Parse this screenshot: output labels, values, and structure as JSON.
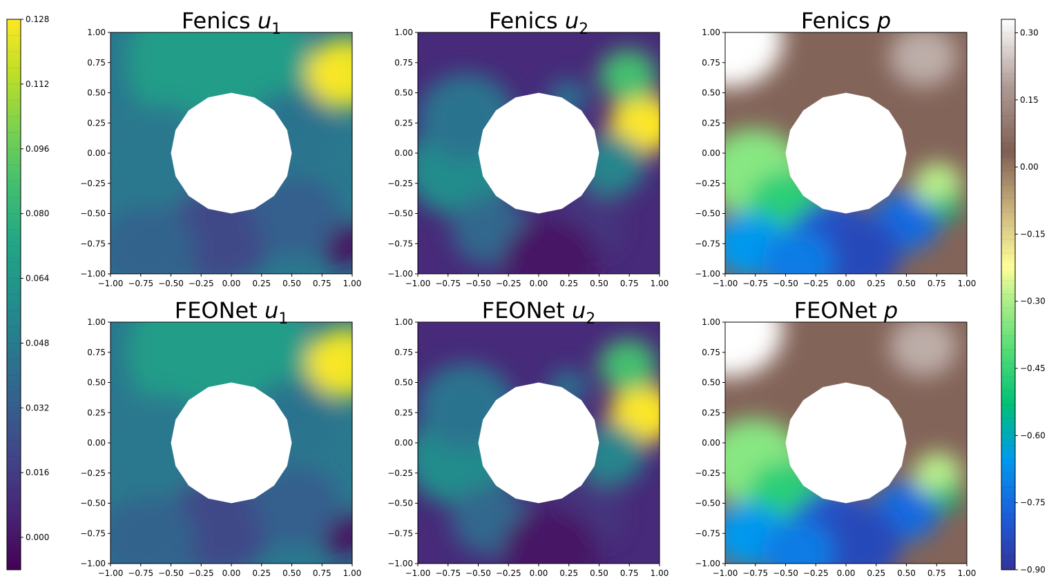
{
  "chart_data": [
    {
      "type": "heatmap",
      "title": "Fenics",
      "title_var": "u",
      "title_sub": "1",
      "field": "u1",
      "colormap": "viridis",
      "xlim": [
        -1.0,
        1.0
      ],
      "ylim": [
        -1.0,
        1.0
      ],
      "x_ticks": [
        "−1.00",
        "−0.75",
        "−0.50",
        "−0.25",
        "0.00",
        "0.25",
        "0.50",
        "0.75",
        "1.00"
      ],
      "y_ticks": [
        "−1.00",
        "−0.75",
        "−0.50",
        "−0.25",
        "0.00",
        "0.25",
        "0.50",
        "0.75",
        "1.00"
      ],
      "obstacle": {
        "shape": "circle",
        "center": [
          0.0,
          0.0
        ],
        "radius": 0.5
      }
    },
    {
      "type": "heatmap",
      "title": "Fenics",
      "title_var": "u",
      "title_sub": "2",
      "field": "u2",
      "colormap": "viridis",
      "xlim": [
        -1.0,
        1.0
      ],
      "ylim": [
        -1.0,
        1.0
      ],
      "x_ticks": [
        "−1.00",
        "−0.75",
        "−0.50",
        "−0.25",
        "0.00",
        "0.25",
        "0.50",
        "0.75",
        "1.00"
      ],
      "y_ticks": [
        "−1.00",
        "−0.75",
        "−0.50",
        "−0.25",
        "0.00",
        "0.25",
        "0.50",
        "0.75",
        "1.00"
      ],
      "obstacle": {
        "shape": "circle",
        "center": [
          0.0,
          0.0
        ],
        "radius": 0.5
      }
    },
    {
      "type": "heatmap",
      "title": "Fenics",
      "title_var": "p",
      "title_sub": "",
      "field": "p",
      "colormap": "terrain",
      "xlim": [
        -1.0,
        1.0
      ],
      "ylim": [
        -1.0,
        1.0
      ],
      "x_ticks": [
        "−1.00",
        "−0.75",
        "−0.50",
        "−0.25",
        "0.00",
        "0.25",
        "0.50",
        "0.75",
        "1.00"
      ],
      "y_ticks": [
        "−1.00",
        "−0.75",
        "−0.50",
        "−0.25",
        "0.00",
        "0.25",
        "0.50",
        "0.75",
        "1.00"
      ],
      "obstacle": {
        "shape": "circle",
        "center": [
          0.0,
          0.0
        ],
        "radius": 0.5
      }
    },
    {
      "type": "heatmap",
      "title": "FEONet",
      "title_var": "u",
      "title_sub": "1",
      "field": "u1",
      "colormap": "viridis",
      "xlim": [
        -1.0,
        1.0
      ],
      "ylim": [
        -1.0,
        1.0
      ],
      "x_ticks": [
        "−1.00",
        "−0.75",
        "−0.50",
        "−0.25",
        "0.00",
        "0.25",
        "0.50",
        "0.75",
        "1.00"
      ],
      "y_ticks": [
        "−1.00",
        "−0.75",
        "−0.50",
        "−0.25",
        "0.00",
        "0.25",
        "0.50",
        "0.75",
        "1.00"
      ],
      "obstacle": {
        "shape": "circle",
        "center": [
          0.0,
          0.0
        ],
        "radius": 0.5
      }
    },
    {
      "type": "heatmap",
      "title": "FEONet",
      "title_var": "u",
      "title_sub": "2",
      "field": "u2",
      "colormap": "viridis",
      "xlim": [
        -1.0,
        1.0
      ],
      "ylim": [
        -1.0,
        1.0
      ],
      "x_ticks": [
        "−1.00",
        "−0.75",
        "−0.50",
        "−0.25",
        "0.00",
        "0.25",
        "0.50",
        "0.75",
        "1.00"
      ],
      "y_ticks": [
        "−1.00",
        "−0.75",
        "−0.50",
        "−0.25",
        "0.00",
        "0.25",
        "0.50",
        "0.75",
        "1.00"
      ],
      "obstacle": {
        "shape": "circle",
        "center": [
          0.0,
          0.0
        ],
        "radius": 0.5
      }
    },
    {
      "type": "heatmap",
      "title": "FEONet",
      "title_var": "p",
      "title_sub": "",
      "field": "p",
      "colormap": "terrain",
      "xlim": [
        -1.0,
        1.0
      ],
      "ylim": [
        -1.0,
        1.0
      ],
      "x_ticks": [
        "−1.00",
        "−0.75",
        "−0.50",
        "−0.25",
        "0.00",
        "0.25",
        "0.50",
        "0.75",
        "1.00"
      ],
      "y_ticks": [
        "−1.00",
        "−0.75",
        "−0.50",
        "−0.25",
        "0.00",
        "0.25",
        "0.50",
        "0.75",
        "1.00"
      ],
      "obstacle": {
        "shape": "circle",
        "center": [
          0.0,
          0.0
        ],
        "radius": 0.5
      }
    }
  ],
  "colorbars": {
    "velocity": {
      "colormap": "viridis",
      "range": [
        -0.008,
        0.128
      ],
      "ticks": [
        "0.128",
        "0.112",
        "0.096",
        "0.080",
        "0.064",
        "0.048",
        "0.032",
        "0.016",
        "0.000"
      ],
      "position": "left"
    },
    "pressure": {
      "colormap": "terrain",
      "range": [
        -0.9,
        0.33
      ],
      "ticks": [
        "0.30",
        "0.15",
        "0.00",
        "−0.15",
        "−0.30",
        "−0.45",
        "−0.60",
        "−0.75",
        "−0.90"
      ],
      "position": "right"
    }
  }
}
